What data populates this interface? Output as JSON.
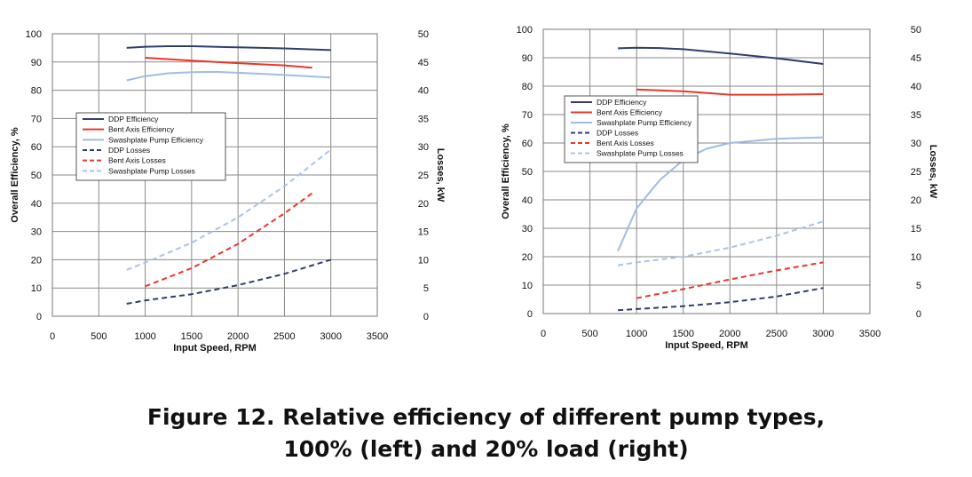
{
  "caption": {
    "line1": "Figure 12.  Relative efficiency of different pump types,",
    "line2": "100% (left) and 20% load (right)"
  },
  "chart_data": [
    {
      "type": "line",
      "xlabel": "Input Speed, RPM",
      "ylabel": "Overall Efficiency, %",
      "y2label": "Losses, kW",
      "xlim": [
        0,
        3500
      ],
      "ylim": [
        0,
        100
      ],
      "y2lim": [
        0,
        50
      ],
      "xticks": [
        0,
        500,
        1000,
        1500,
        2000,
        2500,
        3000,
        3500
      ],
      "yticks": [
        0,
        10,
        20,
        30,
        40,
        50,
        60,
        70,
        80,
        90,
        100
      ],
      "y2ticks": [
        0,
        5,
        10,
        15,
        20,
        25,
        30,
        35,
        40,
        45,
        50
      ],
      "grid": true,
      "legend_position": "left-middle",
      "series": [
        {
          "name": "DDP Efficiency",
          "axis": "left",
          "color": "#2f3f6e",
          "dash": false,
          "x": [
            800,
            1000,
            1250,
            1500,
            2000,
            2500,
            3000
          ],
          "y": [
            95,
            95.4,
            95.6,
            95.6,
            95.2,
            94.8,
            94.2
          ]
        },
        {
          "name": "Bent Axis Efficiency",
          "axis": "left",
          "color": "#e8372c",
          "dash": false,
          "x": [
            1000,
            1500,
            2000,
            2500,
            2800
          ],
          "y": [
            91.5,
            90.5,
            89.6,
            88.8,
            88
          ]
        },
        {
          "name": "Swashplate Pump Efficiency",
          "axis": "left",
          "color": "#9fbde4",
          "dash": false,
          "x": [
            800,
            1000,
            1250,
            1500,
            1750,
            2000,
            2500,
            3000
          ],
          "y": [
            83.5,
            85,
            86,
            86.4,
            86.5,
            86.2,
            85.4,
            84.5
          ]
        },
        {
          "name": "DDP Losses",
          "axis": "right",
          "color": "#2f3f6e",
          "dash": true,
          "x": [
            800,
            1000,
            1500,
            2000,
            2500,
            3000
          ],
          "y": [
            2.2,
            2.8,
            3.9,
            5.5,
            7.5,
            10
          ]
        },
        {
          "name": "Bent Axis Losses",
          "axis": "right",
          "color": "#e8372c",
          "dash": true,
          "x": [
            1000,
            1500,
            2000,
            2500,
            2800
          ],
          "y": [
            5.3,
            8.5,
            12.8,
            18.2,
            21.8
          ]
        },
        {
          "name": "Swashplate Pump Losses",
          "axis": "right",
          "color": "#a9c4e8",
          "dash": true,
          "x": [
            800,
            1000,
            1500,
            2000,
            2500,
            3000
          ],
          "y": [
            8.2,
            9.5,
            13,
            17.5,
            23,
            29.5
          ]
        }
      ]
    },
    {
      "type": "line",
      "xlabel": "Input Speed, RPM",
      "ylabel": "Overall Efficiency, %",
      "y2label": "Losses, kW",
      "xlim": [
        0,
        3500
      ],
      "ylim": [
        0,
        100
      ],
      "y2lim": [
        0,
        50
      ],
      "xticks": [
        0,
        500,
        1000,
        1500,
        2000,
        2500,
        3000,
        3500
      ],
      "yticks": [
        0,
        10,
        20,
        30,
        40,
        50,
        60,
        70,
        80,
        90,
        100
      ],
      "y2ticks": [
        0,
        5,
        10,
        15,
        20,
        25,
        30,
        35,
        40,
        45,
        50
      ],
      "grid": true,
      "legend_position": "top-left",
      "series": [
        {
          "name": "DDP Efficiency",
          "axis": "left",
          "color": "#2f3f6e",
          "dash": false,
          "x": [
            800,
            1000,
            1250,
            1500,
            2000,
            2500,
            3000
          ],
          "y": [
            93.3,
            93.5,
            93.4,
            93,
            91.5,
            89.8,
            87.8
          ]
        },
        {
          "name": "Bent Axis Efficiency",
          "axis": "left",
          "color": "#e8372c",
          "dash": false,
          "x": [
            1000,
            1500,
            2000,
            2500,
            3000
          ],
          "y": [
            78.8,
            78.2,
            77,
            77,
            77.2
          ]
        },
        {
          "name": "Swashplate Pump Efficiency",
          "axis": "left",
          "color": "#9fbde4",
          "dash": false,
          "x": [
            800,
            1000,
            1250,
            1500,
            1750,
            2000,
            2500,
            3000
          ],
          "y": [
            22,
            37,
            47,
            54,
            58,
            60,
            61.5,
            62
          ]
        },
        {
          "name": "DDP Losses",
          "axis": "right",
          "color": "#2f3f6e",
          "dash": true,
          "x": [
            800,
            1000,
            1500,
            2000,
            2500,
            3000
          ],
          "y": [
            0.6,
            0.8,
            1.3,
            2,
            3,
            4.5
          ]
        },
        {
          "name": "Bent Axis Losses",
          "axis": "right",
          "color": "#e8372c",
          "dash": true,
          "x": [
            1000,
            1500,
            2000,
            2500,
            3000
          ],
          "y": [
            2.7,
            4.3,
            6,
            7.6,
            9
          ]
        },
        {
          "name": "Swashplate Pump Losses",
          "axis": "right",
          "color": "#a9c4e8",
          "dash": true,
          "x": [
            800,
            1000,
            1500,
            2000,
            2500,
            3000
          ],
          "y": [
            8.5,
            9,
            10,
            11.6,
            13.7,
            16.2
          ]
        }
      ]
    }
  ]
}
